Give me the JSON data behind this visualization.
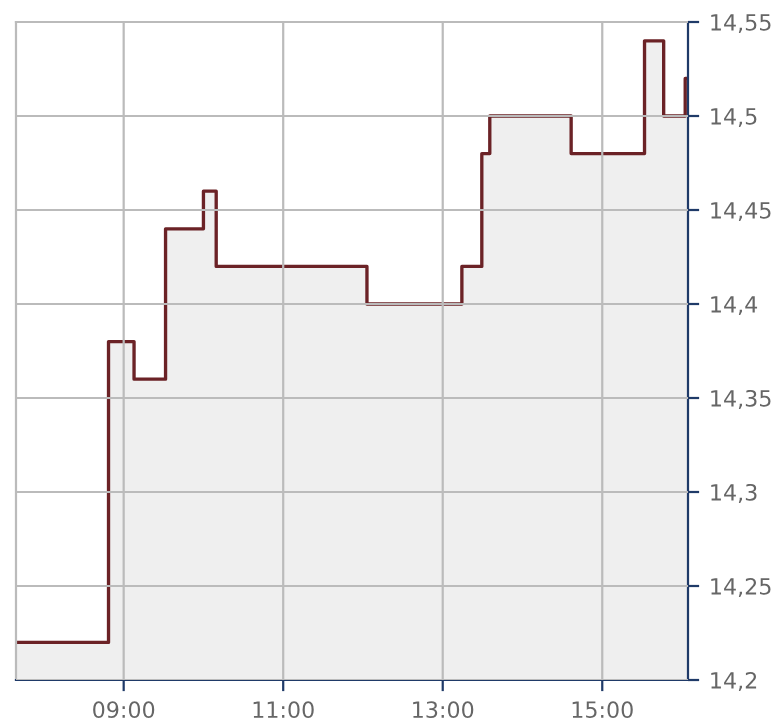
{
  "chart_data": {
    "type": "step",
    "x": [
      7.65,
      8.81,
      9.13,
      9.525,
      10.0,
      10.16,
      12.05,
      13.24,
      13.49,
      13.59,
      14.61,
      15.53,
      15.77,
      16.04,
      16.075
    ],
    "series": [
      {
        "type": "area",
        "color": "#efefef",
        "values": [
          14.22,
          14.38,
          14.36,
          14.44,
          14.46,
          14.42,
          14.4,
          14.42,
          14.48,
          14.5,
          14.48,
          14.54,
          14.5,
          14.52,
          14.52
        ]
      },
      {
        "color": "#6b2226",
        "values": [
          14.22,
          14.38,
          14.36,
          14.44,
          14.46,
          14.42,
          14.4,
          14.42,
          14.48,
          14.5,
          14.48,
          14.54,
          14.5,
          14.52,
          14.52
        ]
      }
    ],
    "xlim": [
      7.65,
      16.075
    ],
    "xticks": [
      {
        "value": 9,
        "label": "09:00"
      },
      {
        "value": 11,
        "label": "11:00"
      },
      {
        "value": 13,
        "label": "13:00"
      },
      {
        "value": 15,
        "label": "15:00"
      }
    ],
    "ylim": [
      14.2,
      14.55
    ],
    "yticks": [
      {
        "value": 14.2,
        "label": "14,2"
      },
      {
        "value": 14.25,
        "label": "14,25"
      },
      {
        "value": 14.3,
        "label": "14,3"
      },
      {
        "value": 14.35,
        "label": "14,35"
      },
      {
        "value": 14.4,
        "label": "14,4"
      },
      {
        "value": 14.45,
        "label": "14,45"
      },
      {
        "value": 14.5,
        "label": "14,5"
      },
      {
        "value": 14.55,
        "label": "14,55"
      }
    ],
    "grid": true
  }
}
